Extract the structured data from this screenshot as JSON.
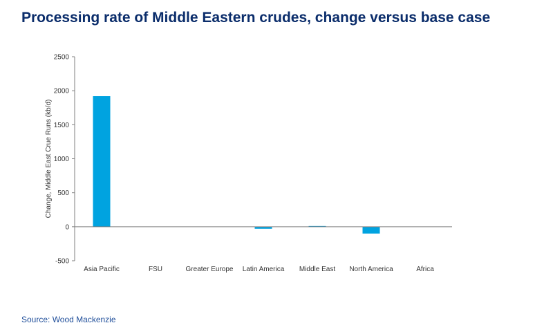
{
  "chart_data": {
    "type": "bar",
    "title": "Processing rate of Middle Eastern crudes, change versus base case",
    "xlabel": "",
    "ylabel": "Change, Middle East Crue Runs (kb/d)",
    "categories": [
      "Asia Pacific",
      "FSU",
      "Greater Europe",
      "Latin America",
      "Middle East",
      "North America",
      "Africa"
    ],
    "values": [
      1920,
      0,
      0,
      -30,
      5,
      -100,
      0
    ],
    "ylim": [
      -500,
      2500
    ],
    "yticks": [
      -500,
      0,
      500,
      1000,
      1500,
      2000,
      2500
    ],
    "grid": false,
    "legend": "none",
    "bar_color": "#00a3e0",
    "axis_color": "#7f7f7f"
  },
  "footer": {
    "source": "Source: Wood Mackenzie"
  },
  "colors": {
    "title": "#0b2d6b",
    "source": "#1f4e9a"
  }
}
